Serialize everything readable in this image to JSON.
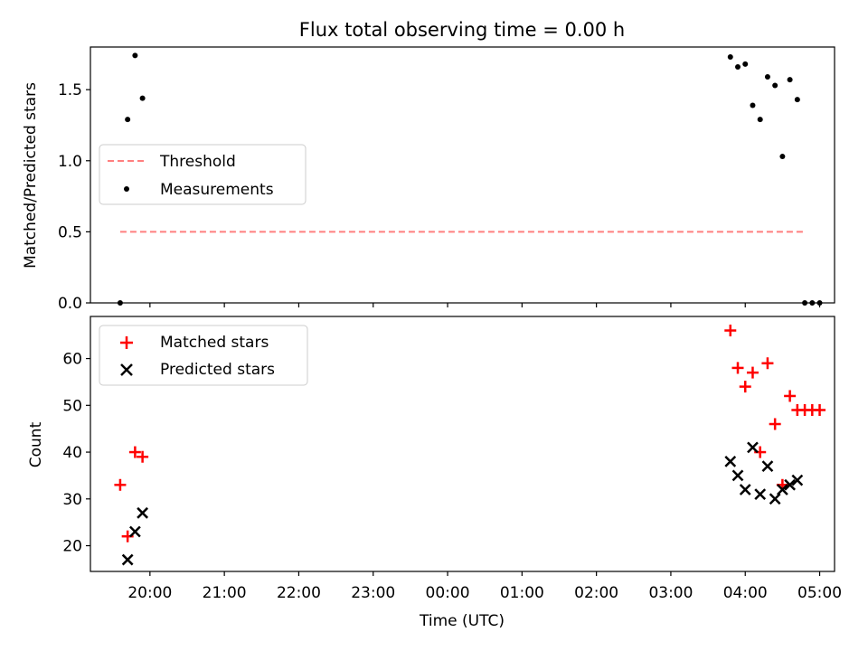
{
  "chart_data": [
    {
      "type": "scatter",
      "title": "Flux total observing time = 0.00 h",
      "xlabel": "",
      "ylabel": "Matched/Predicted stars",
      "xlim": [
        "19:12",
        "05:12"
      ],
      "ylim": [
        0,
        1.8
      ],
      "yticks": [
        "0.0",
        "0.5",
        "1.0",
        "1.5"
      ],
      "yticks_values": [
        0,
        0.5,
        1.0,
        1.5
      ],
      "grid": false,
      "legend_position": "center-left",
      "threshold": {
        "name": "Threshold",
        "color": "#ff7f7f",
        "style": "dashed",
        "y": 0.5,
        "x_range": [
          "19:36",
          "04:48"
        ]
      },
      "series": [
        {
          "name": "Measurements",
          "color": "#000000",
          "marker": "dot",
          "points": [
            {
              "x": "19:36",
              "y": 0.0
            },
            {
              "x": "19:42",
              "y": 1.29
            },
            {
              "x": "19:48",
              "y": 1.74
            },
            {
              "x": "19:54",
              "y": 1.44
            },
            {
              "x": "03:48",
              "y": 1.73
            },
            {
              "x": "03:54",
              "y": 1.66
            },
            {
              "x": "04:00",
              "y": 1.68
            },
            {
              "x": "04:06",
              "y": 1.39
            },
            {
              "x": "04:12",
              "y": 1.29
            },
            {
              "x": "04:18",
              "y": 1.59
            },
            {
              "x": "04:24",
              "y": 1.53
            },
            {
              "x": "04:30",
              "y": 1.03
            },
            {
              "x": "04:36",
              "y": 1.57
            },
            {
              "x": "04:42",
              "y": 1.43
            },
            {
              "x": "04:48",
              "y": 0.0
            },
            {
              "x": "04:54",
              "y": 0.0
            },
            {
              "x": "05:00",
              "y": 0.0
            }
          ]
        }
      ]
    },
    {
      "type": "scatter",
      "title": "",
      "xlabel": "Time (UTC)",
      "ylabel": "Count",
      "xlim": [
        "19:12",
        "05:12"
      ],
      "ylim": [
        14.5,
        69
      ],
      "yticks": [
        "20",
        "30",
        "40",
        "50",
        "60"
      ],
      "yticks_values": [
        20,
        30,
        40,
        50,
        60
      ],
      "xticks": [
        "20:00",
        "21:00",
        "22:00",
        "23:00",
        "00:00",
        "01:00",
        "02:00",
        "03:00",
        "04:00",
        "05:00"
      ],
      "grid": false,
      "legend_position": "top-left",
      "series": [
        {
          "name": "Matched stars",
          "color": "#ff0000",
          "marker": "plus",
          "points": [
            {
              "x": "19:36",
              "y": 33
            },
            {
              "x": "19:42",
              "y": 22
            },
            {
              "x": "19:48",
              "y": 40
            },
            {
              "x": "19:54",
              "y": 39
            },
            {
              "x": "03:48",
              "y": 66
            },
            {
              "x": "03:54",
              "y": 58
            },
            {
              "x": "04:00",
              "y": 54
            },
            {
              "x": "04:06",
              "y": 57
            },
            {
              "x": "04:12",
              "y": 40
            },
            {
              "x": "04:18",
              "y": 59
            },
            {
              "x": "04:24",
              "y": 46
            },
            {
              "x": "04:30",
              "y": 33
            },
            {
              "x": "04:36",
              "y": 52
            },
            {
              "x": "04:42",
              "y": 49
            },
            {
              "x": "04:48",
              "y": 49
            },
            {
              "x": "04:54",
              "y": 49
            },
            {
              "x": "05:00",
              "y": 49
            }
          ]
        },
        {
          "name": "Predicted stars",
          "color": "#000000",
          "marker": "x",
          "points": [
            {
              "x": "19:42",
              "y": 17
            },
            {
              "x": "19:48",
              "y": 23
            },
            {
              "x": "19:54",
              "y": 27
            },
            {
              "x": "03:48",
              "y": 38
            },
            {
              "x": "03:54",
              "y": 35
            },
            {
              "x": "04:00",
              "y": 32
            },
            {
              "x": "04:06",
              "y": 41
            },
            {
              "x": "04:12",
              "y": 31
            },
            {
              "x": "04:18",
              "y": 37
            },
            {
              "x": "04:24",
              "y": 30
            },
            {
              "x": "04:30",
              "y": 32
            },
            {
              "x": "04:36",
              "y": 33
            },
            {
              "x": "04:42",
              "y": 34
            }
          ]
        }
      ]
    }
  ]
}
